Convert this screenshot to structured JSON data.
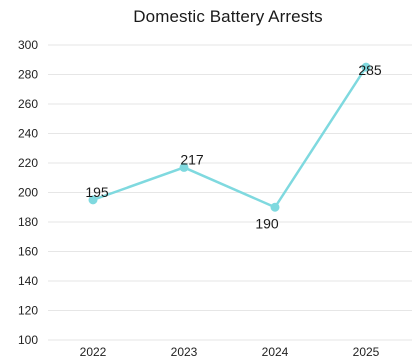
{
  "chart_data": {
    "type": "line",
    "title": "Domestic Battery Arrests",
    "xlabel": "",
    "ylabel": "",
    "categories": [
      "2022",
      "2023",
      "2024",
      "2025"
    ],
    "series": [
      {
        "values": [
          195,
          217,
          190,
          285
        ]
      }
    ],
    "data_labels": [
      "195",
      "217",
      "190",
      "285"
    ],
    "ylim": [
      100,
      300
    ],
    "yticks": [
      100,
      120,
      140,
      160,
      180,
      200,
      220,
      240,
      260,
      280,
      300
    ],
    "grid": true,
    "legend": "none",
    "colors": {
      "line": "#7fd9df",
      "grid": "#e6e6e6"
    }
  }
}
